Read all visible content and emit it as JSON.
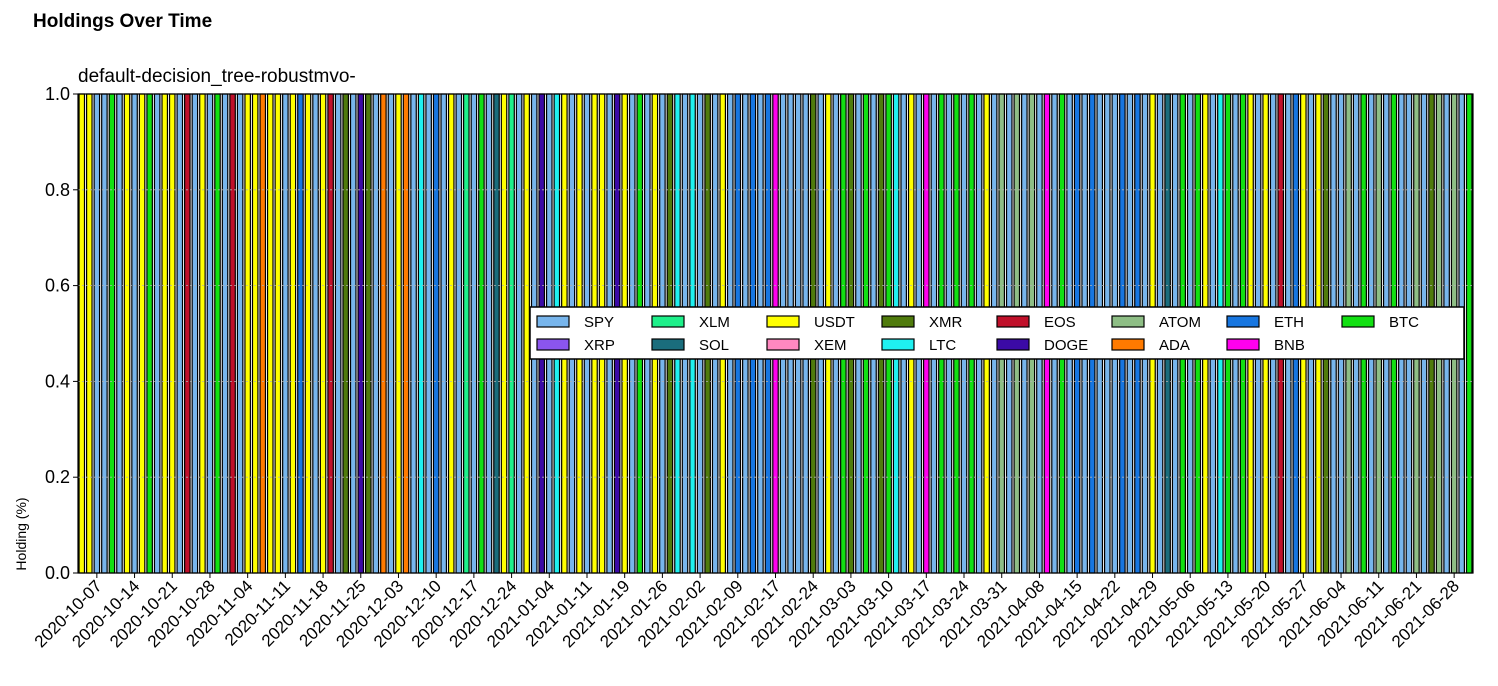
{
  "chart_data": {
    "type": "bar",
    "stacked": true,
    "title": "Holdings Over Time",
    "subtitle": "default-decision_tree-robustmvo-",
    "xlabel": "",
    "ylabel": "Holding (%)",
    "ylim": [
      0,
      1
    ],
    "yticks": [
      "0.0",
      "0.2",
      "0.4",
      "0.6",
      "0.8",
      "1.0"
    ],
    "grid": "horizontal",
    "legend_position": "center-right",
    "xtick_labels": [
      "2020-10-07",
      "2020-10-14",
      "2020-10-21",
      "2020-10-28",
      "2020-11-04",
      "2020-11-11",
      "2020-11-18",
      "2020-11-25",
      "2020-12-03",
      "2020-12-10",
      "2020-12-17",
      "2020-12-24",
      "2021-01-04",
      "2021-01-11",
      "2021-01-19",
      "2021-01-26",
      "2021-02-02",
      "2021-02-09",
      "2021-02-17",
      "2021-02-24",
      "2021-03-03",
      "2021-03-10",
      "2021-03-17",
      "2021-03-24",
      "2021-03-31",
      "2021-04-08",
      "2021-04-15",
      "2021-04-22",
      "2021-04-29",
      "2021-05-06",
      "2021-05-13",
      "2021-05-20",
      "2021-05-27",
      "2021-06-04",
      "2021-06-11",
      "2021-06-21",
      "2021-06-28"
    ],
    "bar_count": 185,
    "assets": [
      {
        "name": "SPY",
        "color": "#77b5ec"
      },
      {
        "name": "XRP",
        "color": "#8b55ee"
      },
      {
        "name": "XLM",
        "color": "#1ef08a"
      },
      {
        "name": "SOL",
        "color": "#1a6d7c"
      },
      {
        "name": "USDT",
        "color": "#ffff00"
      },
      {
        "name": "XEM",
        "color": "#ff88c0"
      },
      {
        "name": "XMR",
        "color": "#4f7b0c"
      },
      {
        "name": "LTC",
        "color": "#1ff0f0"
      },
      {
        "name": "EOS",
        "color": "#c0102a"
      },
      {
        "name": "DOGE",
        "color": "#3b0aa6"
      },
      {
        "name": "ATOM",
        "color": "#8ebe85"
      },
      {
        "name": "ADA",
        "color": "#ff7a00"
      },
      {
        "name": "ETH",
        "color": "#1776e0"
      },
      {
        "name": "BNB",
        "color": "#ff00ee"
      },
      {
        "name": "BTC",
        "color": "#12e012"
      }
    ],
    "dominant_asset_per_bar": "USDT,USDT,SPY,SPY,BTC,SPY,USDT,SPY,USDT,BTC,SPY,USDT,USDT,SPY,EOS,SPY,USDT,SPY,BTC,SPY,EOS,SPY,USDT,USDT,ADA,USDT,USDT,SPY,USDT,ETH,USDT,SPY,USDT,EOS,SPY,XMR,SPY,DOGE,XMR,SPY,ADA,SPY,USDT,ADA,SPY,LTC,SPY,ETH,SPY,USDT,SPY,XLM,SPY,BTC,SPY,SOL,USDT,XLM,SPY,USDT,SPY,DOGE,SPY,LTC,USDT,SPY,USDT,SPY,USDT,USDT,SPY,DOGE,USDT,SPY,BTC,SPY,USDT,SPY,XMR,LTC,SPY,LTC,SPY,XMR,SPY,USDT,SPY,ETH,SPY,ETH,SPY,ETH,BNB,SPY,SPY,SPY,SPY,XMR,SPY,USDT,SPY,BTC,XMR,SPY,BTC,SPY,XMR,BTC,LTC,SPY,USDT,SPY,BNB,SPY,BTC,SPY,BTC,SPY,BTC,SPY,USDT,SPY,ATOM,SPY,ATOM,SPY,ATOM,SPY,BNB,SPY,BTC,SPY,ETH,SPY,ETH,SPY,SPY,SPY,ETH,SPY,ETH,SPY,USDT,SPY,SOL,SPY,BTC,SPY,BTC,USDT,SPY,LTC,BTC,SPY,BTC,USDT,SPY,USDT,SPY,EOS,SPY,ETH,USDT,SPY,USDT,XMR,SPY,SPY,ATOM,SPY,BTC,SPY,ATOM,SPY,BTC,SPY,SPY,ATOM,SPY,XMR,ATOM,SPY,ATOM,SPY,BTC"
  }
}
